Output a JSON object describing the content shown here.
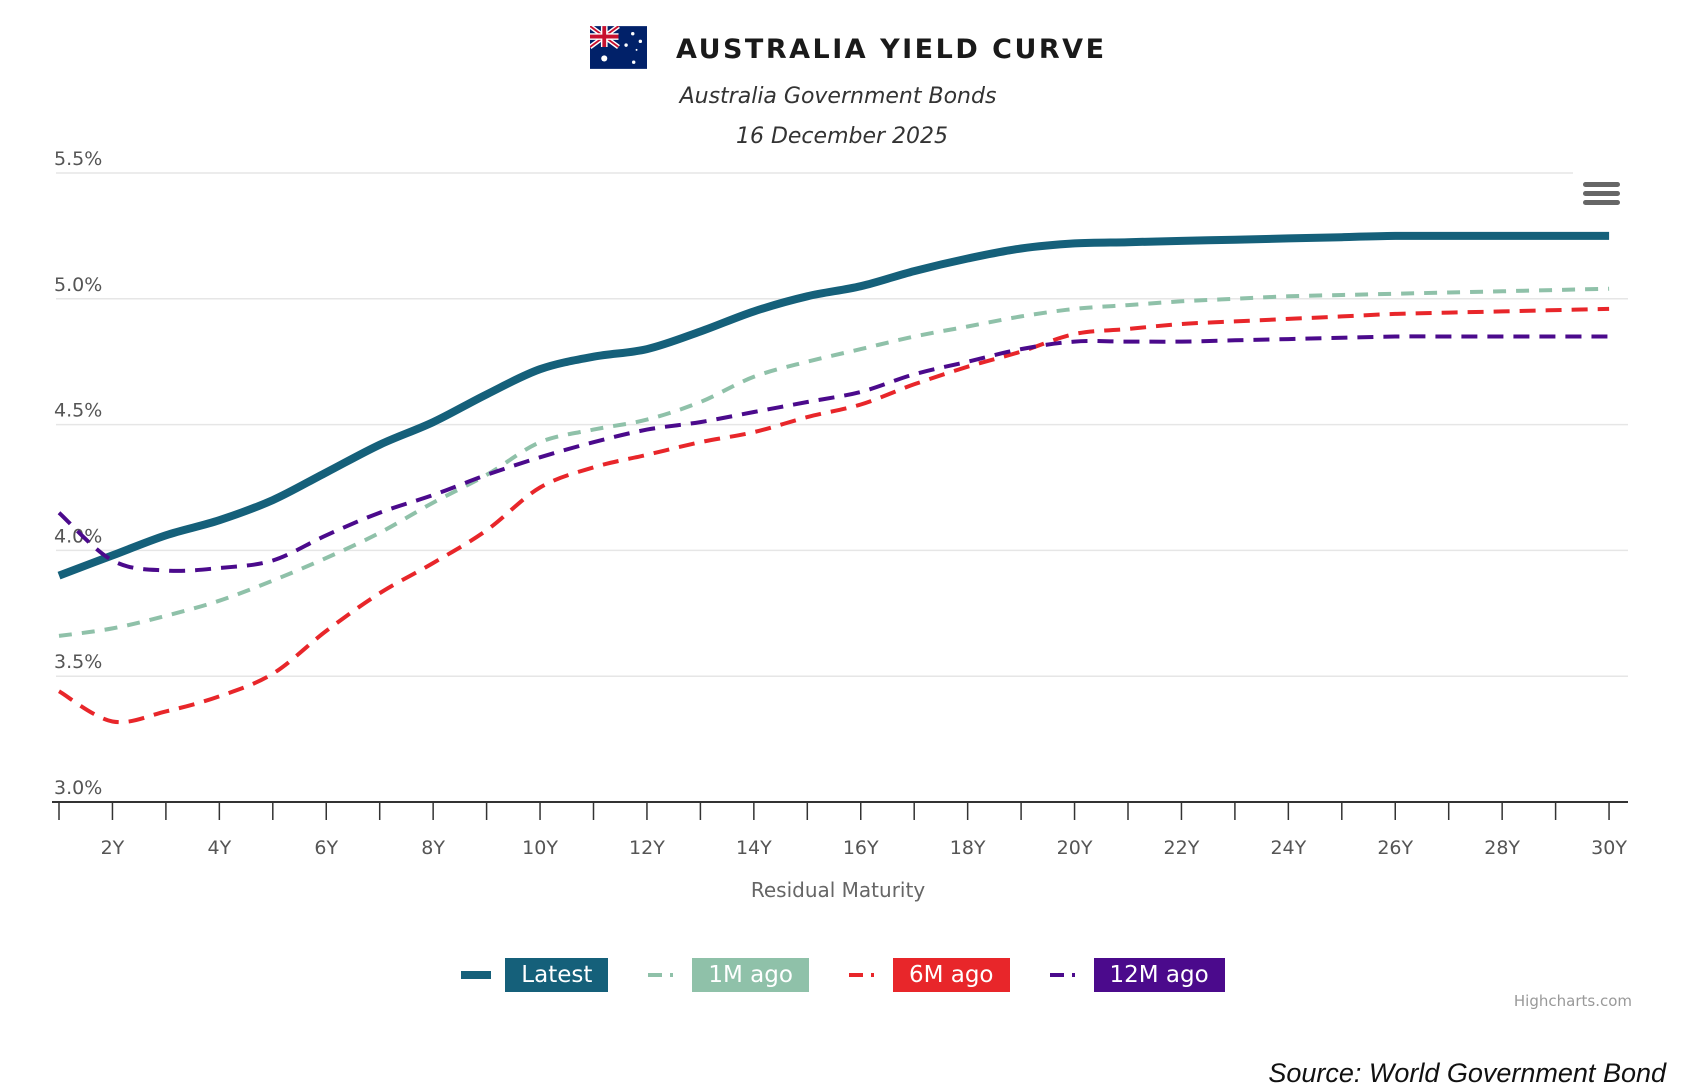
{
  "header": {
    "flag_icon": "australia-flag-icon",
    "title": "AUSTRALIA YIELD CURVE",
    "subtitle": "Australia Government Bonds",
    "date": "16 December 2025"
  },
  "menu": {
    "icon": "hamburger-menu-icon"
  },
  "credits": "Highcharts.com",
  "source": "Source: World Government Bond",
  "chart_data": {
    "type": "line",
    "title": "AUSTRALIA YIELD CURVE",
    "subtitle": "Australia Government Bonds — 16 December 2025",
    "xlabel": "Residual Maturity",
    "ylabel": "",
    "x": [
      1,
      2,
      3,
      4,
      5,
      6,
      7,
      8,
      9,
      10,
      11,
      12,
      13,
      14,
      15,
      16,
      17,
      18,
      19,
      20,
      21,
      22,
      23,
      24,
      25,
      26,
      27,
      28,
      29,
      30
    ],
    "x_tick_labels": [
      "2Y",
      "4Y",
      "6Y",
      "8Y",
      "10Y",
      "12Y",
      "14Y",
      "16Y",
      "18Y",
      "20Y",
      "22Y",
      "24Y",
      "26Y",
      "28Y",
      "30Y"
    ],
    "x_tick_values": [
      2,
      4,
      6,
      8,
      10,
      12,
      14,
      16,
      18,
      20,
      22,
      24,
      26,
      28,
      30
    ],
    "xlim": [
      1,
      30
    ],
    "ylim": [
      3.0,
      5.5
    ],
    "y_ticks": [
      3.0,
      3.5,
      4.0,
      4.5,
      5.0,
      5.5
    ],
    "y_tick_labels": [
      "3.0%",
      "3.5%",
      "4.0%",
      "4.5%",
      "5.0%",
      "5.5%"
    ],
    "grid": true,
    "legend_position": "bottom-center",
    "series": [
      {
        "name": "Latest",
        "color": "#15607a",
        "style": "solid",
        "values": [
          3.9,
          3.98,
          4.06,
          4.12,
          4.2,
          4.31,
          4.42,
          4.51,
          4.62,
          4.72,
          4.77,
          4.8,
          4.87,
          4.95,
          5.01,
          5.05,
          5.11,
          5.16,
          5.2,
          5.22,
          5.225,
          5.23,
          5.235,
          5.24,
          5.245,
          5.25,
          5.25,
          5.25,
          5.25,
          5.25
        ]
      },
      {
        "name": "1M ago",
        "color": "#8fc1a9",
        "style": "dash",
        "values": [
          3.66,
          3.69,
          3.74,
          3.8,
          3.88,
          3.97,
          4.07,
          4.19,
          4.3,
          4.43,
          4.48,
          4.52,
          4.59,
          4.69,
          4.75,
          4.8,
          4.85,
          4.89,
          4.93,
          4.96,
          4.975,
          4.99,
          5.0,
          5.01,
          5.015,
          5.02,
          5.025,
          5.03,
          5.035,
          5.04
        ]
      },
      {
        "name": "6M ago",
        "color": "#e8262a",
        "style": "dash",
        "values": [
          3.44,
          3.32,
          3.36,
          3.42,
          3.51,
          3.68,
          3.83,
          3.95,
          4.08,
          4.25,
          4.33,
          4.38,
          4.43,
          4.47,
          4.53,
          4.58,
          4.66,
          4.73,
          4.79,
          4.86,
          4.88,
          4.9,
          4.91,
          4.92,
          4.93,
          4.94,
          4.945,
          4.95,
          4.955,
          4.96
        ]
      },
      {
        "name": "12M ago",
        "color": "#4b0a8c",
        "style": "dash",
        "values": [
          4.15,
          3.96,
          3.92,
          3.93,
          3.96,
          4.06,
          4.15,
          4.22,
          4.3,
          4.37,
          4.43,
          4.48,
          4.51,
          4.55,
          4.59,
          4.63,
          4.7,
          4.75,
          4.8,
          4.83,
          4.83,
          4.83,
          4.835,
          4.84,
          4.845,
          4.85,
          4.85,
          4.85,
          4.85,
          4.85
        ]
      }
    ]
  }
}
